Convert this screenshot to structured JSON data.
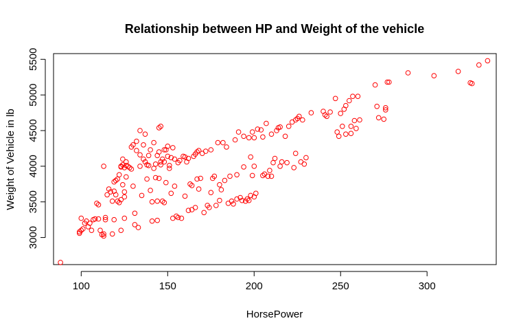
{
  "chart_data": {
    "type": "scatter",
    "title": "Relationship between HP and Weight of the vehicle",
    "xlabel": "HorsePower",
    "ylabel": "Weight of Vehicle in lb",
    "xlim": [
      84,
      340
    ],
    "ylim": [
      2620,
      5580
    ],
    "xticks": [
      100,
      150,
      200,
      250,
      300
    ],
    "yticks": [
      3000,
      3500,
      4000,
      4500,
      5000,
      5500
    ],
    "grid": false,
    "legend": "none",
    "point_color": "#ff0000",
    "points": [
      [
        88,
        2650
      ],
      [
        99,
        3060
      ],
      [
        99,
        3080
      ],
      [
        100,
        3100
      ],
      [
        100,
        3270
      ],
      [
        101,
        3120
      ],
      [
        102,
        3200
      ],
      [
        103,
        3230
      ],
      [
        104,
        3150
      ],
      [
        105,
        3200
      ],
      [
        106,
        3100
      ],
      [
        107,
        3250
      ],
      [
        108,
        3260
      ],
      [
        109,
        3480
      ],
      [
        110,
        3460
      ],
      [
        110,
        3260
      ],
      [
        111,
        3100
      ],
      [
        112,
        3040
      ],
      [
        113,
        3020
      ],
      [
        113,
        3050
      ],
      [
        113,
        4000
      ],
      [
        114,
        3250
      ],
      [
        114,
        3280
      ],
      [
        115,
        3600
      ],
      [
        116,
        3680
      ],
      [
        117,
        3640
      ],
      [
        118,
        3510
      ],
      [
        118,
        3050
      ],
      [
        119,
        3780
      ],
      [
        119,
        3650
      ],
      [
        119,
        3250
      ],
      [
        120,
        3800
      ],
      [
        120,
        3600
      ],
      [
        121,
        3820
      ],
      [
        121,
        3510
      ],
      [
        122,
        3490
      ],
      [
        122,
        3880
      ],
      [
        123,
        3990
      ],
      [
        123,
        4000
      ],
      [
        123,
        3530
      ],
      [
        123,
        3100
      ],
      [
        124,
        3740
      ],
      [
        124,
        4020
      ],
      [
        124,
        4100
      ],
      [
        125,
        3980
      ],
      [
        125,
        3640
      ],
      [
        125,
        3570
      ],
      [
        125,
        3270
      ],
      [
        126,
        4060
      ],
      [
        126,
        3850
      ],
      [
        126,
        4010
      ],
      [
        127,
        4000
      ],
      [
        128,
        3980
      ],
      [
        129,
        4270
      ],
      [
        129,
        3960
      ],
      [
        130,
        4300
      ],
      [
        130,
        3720
      ],
      [
        131,
        3340
      ],
      [
        131,
        3180
      ],
      [
        132,
        4350
      ],
      [
        132,
        4220
      ],
      [
        133,
        3140
      ],
      [
        134,
        4500
      ],
      [
        134,
        4160
      ],
      [
        134,
        4000
      ],
      [
        135,
        3590
      ],
      [
        136,
        4300
      ],
      [
        136,
        4100
      ],
      [
        137,
        4450
      ],
      [
        137,
        4060
      ],
      [
        138,
        4020
      ],
      [
        138,
        3820
      ],
      [
        139,
        4150
      ],
      [
        139,
        4010
      ],
      [
        140,
        4230
      ],
      [
        140,
        3660
      ],
      [
        141,
        3230
      ],
      [
        141,
        3500
      ],
      [
        142,
        4330
      ],
      [
        142,
        3970
      ],
      [
        143,
        4030
      ],
      [
        143,
        3840
      ],
      [
        144,
        4150
      ],
      [
        144,
        3240
      ],
      [
        144,
        3510
      ],
      [
        145,
        4540
      ],
      [
        145,
        4200
      ],
      [
        145,
        3830
      ],
      [
        146,
        4560
      ],
      [
        146,
        4060
      ],
      [
        146,
        4020
      ],
      [
        147,
        4100
      ],
      [
        147,
        3510
      ],
      [
        148,
        4230
      ],
      [
        148,
        4060
      ],
      [
        148,
        3490
      ],
      [
        149,
        4230
      ],
      [
        149,
        3770
      ],
      [
        150,
        4280
      ],
      [
        150,
        4140
      ],
      [
        151,
        4010
      ],
      [
        151,
        3970
      ],
      [
        152,
        4120
      ],
      [
        152,
        3620
      ],
      [
        153,
        4260
      ],
      [
        153,
        3270
      ],
      [
        154,
        4100
      ],
      [
        154,
        3720
      ],
      [
        155,
        3300
      ],
      [
        156,
        4050
      ],
      [
        156,
        3280
      ],
      [
        157,
        4080
      ],
      [
        158,
        3270
      ],
      [
        159,
        4140
      ],
      [
        160,
        4130
      ],
      [
        160,
        3580
      ],
      [
        161,
        4060
      ],
      [
        162,
        4110
      ],
      [
        162,
        3380
      ],
      [
        163,
        3750
      ],
      [
        164,
        3730
      ],
      [
        164,
        3390
      ],
      [
        165,
        4140
      ],
      [
        166,
        4170
      ],
      [
        166,
        3420
      ],
      [
        167,
        4200
      ],
      [
        167,
        3820
      ],
      [
        168,
        4220
      ],
      [
        168,
        3680
      ],
      [
        169,
        3830
      ],
      [
        170,
        4180
      ],
      [
        171,
        3350
      ],
      [
        172,
        4210
      ],
      [
        173,
        3450
      ],
      [
        174,
        3420
      ],
      [
        175,
        4230
      ],
      [
        175,
        3630
      ],
      [
        176,
        3830
      ],
      [
        177,
        3860
      ],
      [
        178,
        3450
      ],
      [
        179,
        4330
      ],
      [
        180,
        3740
      ],
      [
        180,
        3520
      ],
      [
        181,
        3670
      ],
      [
        182,
        4330
      ],
      [
        183,
        3800
      ],
      [
        184,
        4270
      ],
      [
        185,
        3480
      ],
      [
        186,
        3860
      ],
      [
        187,
        3510
      ],
      [
        188,
        3470
      ],
      [
        189,
        4370
      ],
      [
        190,
        3880
      ],
      [
        190,
        3540
      ],
      [
        191,
        4480
      ],
      [
        192,
        3560
      ],
      [
        193,
        3520
      ],
      [
        194,
        4420
      ],
      [
        194,
        3990
      ],
      [
        195,
        3510
      ],
      [
        196,
        3540
      ],
      [
        197,
        4400
      ],
      [
        197,
        3520
      ],
      [
        198,
        4130
      ],
      [
        198,
        3590
      ],
      [
        199,
        4480
      ],
      [
        199,
        3870
      ],
      [
        200,
        4400
      ],
      [
        200,
        4000
      ],
      [
        200,
        3570
      ],
      [
        201,
        3620
      ],
      [
        202,
        4520
      ],
      [
        204,
        4510
      ],
      [
        205,
        4410
      ],
      [
        205,
        3870
      ],
      [
        206,
        3890
      ],
      [
        207,
        4600
      ],
      [
        208,
        3860
      ],
      [
        209,
        3940
      ],
      [
        210,
        4450
      ],
      [
        210,
        3860
      ],
      [
        211,
        4050
      ],
      [
        212,
        4110
      ],
      [
        213,
        4500
      ],
      [
        214,
        4540
      ],
      [
        215,
        4550
      ],
      [
        215,
        4000
      ],
      [
        216,
        4060
      ],
      [
        218,
        4420
      ],
      [
        219,
        4050
      ],
      [
        220,
        4560
      ],
      [
        222,
        4620
      ],
      [
        223,
        3980
      ],
      [
        224,
        4650
      ],
      [
        224,
        4180
      ],
      [
        225,
        4670
      ],
      [
        226,
        4700
      ],
      [
        227,
        4060
      ],
      [
        228,
        4650
      ],
      [
        229,
        4030
      ],
      [
        230,
        4120
      ],
      [
        233,
        4750
      ],
      [
        240,
        4770
      ],
      [
        241,
        4720
      ],
      [
        242,
        4700
      ],
      [
        244,
        4760
      ],
      [
        247,
        4950
      ],
      [
        248,
        4480
      ],
      [
        249,
        4420
      ],
      [
        250,
        4740
      ],
      [
        251,
        4560
      ],
      [
        252,
        4800
      ],
      [
        253,
        4850
      ],
      [
        253,
        4450
      ],
      [
        255,
        4920
      ],
      [
        256,
        4560
      ],
      [
        256,
        4460
      ],
      [
        257,
        4980
      ],
      [
        258,
        4640
      ],
      [
        259,
        4530
      ],
      [
        260,
        4980
      ],
      [
        261,
        4650
      ],
      [
        270,
        5140
      ],
      [
        271,
        4840
      ],
      [
        272,
        4680
      ],
      [
        275,
        4660
      ],
      [
        276,
        4820
      ],
      [
        276,
        4790
      ],
      [
        277,
        5180
      ],
      [
        278,
        5180
      ],
      [
        289,
        5310
      ],
      [
        304,
        5270
      ],
      [
        318,
        5330
      ],
      [
        325,
        5170
      ],
      [
        326,
        5160
      ],
      [
        330,
        5420
      ],
      [
        335,
        5480
      ]
    ]
  }
}
